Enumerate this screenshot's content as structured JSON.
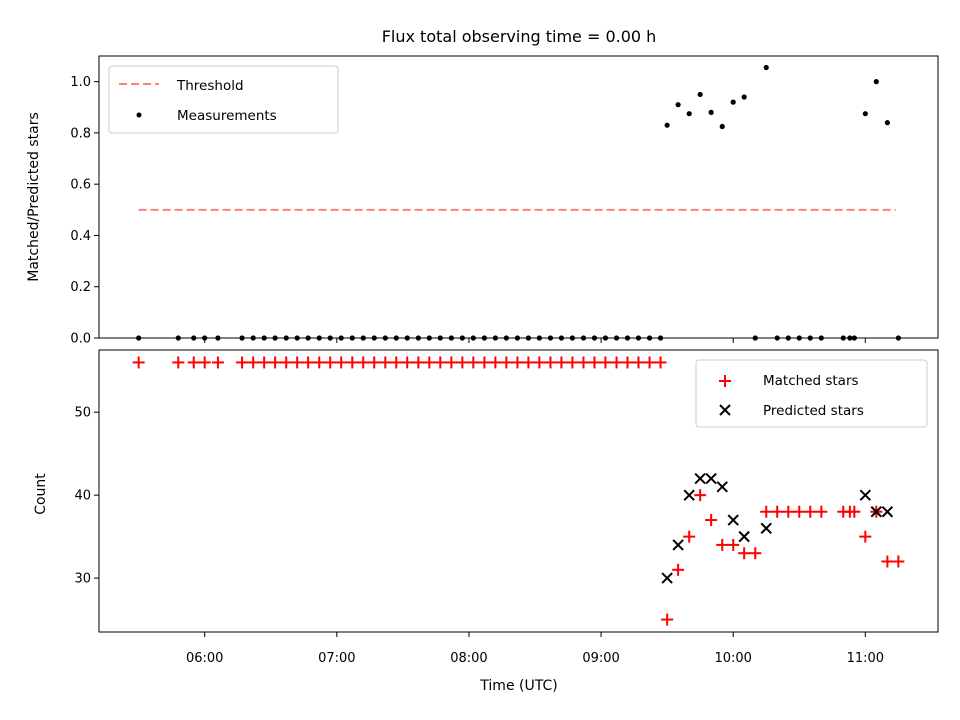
{
  "chart_data": [
    {
      "type": "scatter",
      "title": "Flux total observing time = 0.00 h",
      "xlabel": "",
      "ylabel": "Matched/Predicted stars",
      "x_unit": "hours (UTC)",
      "xlim": [
        5.2,
        11.55
      ],
      "ylim": [
        0,
        1.1
      ],
      "y_ticks": [
        "0.0",
        "0.2",
        "0.4",
        "0.6",
        "0.8",
        "1.0"
      ],
      "legend": {
        "placement": "top-left",
        "entries": [
          "Threshold",
          "Measurements"
        ]
      },
      "threshold": {
        "name": "Threshold",
        "value": 0.5,
        "x_range": [
          5.5,
          11.23
        ],
        "color": "#ff7f7f",
        "style": "dashed"
      },
      "series": [
        {
          "name": "Measurements",
          "color": "#000000",
          "marker": "dot",
          "points": [
            [
              5.5,
              0
            ],
            [
              5.8,
              0
            ],
            [
              5.917,
              0
            ],
            [
              6.0,
              0
            ],
            [
              6.1,
              0
            ],
            [
              6.283,
              0
            ],
            [
              6.367,
              0
            ],
            [
              6.45,
              0
            ],
            [
              6.533,
              0
            ],
            [
              6.617,
              0
            ],
            [
              6.7,
              0
            ],
            [
              6.783,
              0
            ],
            [
              6.867,
              0
            ],
            [
              6.95,
              0
            ],
            [
              7.033,
              0
            ],
            [
              7.117,
              0
            ],
            [
              7.2,
              0
            ],
            [
              7.283,
              0
            ],
            [
              7.367,
              0
            ],
            [
              7.45,
              0
            ],
            [
              7.533,
              0
            ],
            [
              7.617,
              0
            ],
            [
              7.7,
              0
            ],
            [
              7.783,
              0
            ],
            [
              7.867,
              0
            ],
            [
              7.95,
              0
            ],
            [
              8.033,
              0
            ],
            [
              8.117,
              0
            ],
            [
              8.2,
              0
            ],
            [
              8.283,
              0
            ],
            [
              8.367,
              0
            ],
            [
              8.45,
              0
            ],
            [
              8.533,
              0
            ],
            [
              8.617,
              0
            ],
            [
              8.7,
              0
            ],
            [
              8.783,
              0
            ],
            [
              8.867,
              0
            ],
            [
              8.95,
              0
            ],
            [
              9.033,
              0
            ],
            [
              9.117,
              0
            ],
            [
              9.2,
              0
            ],
            [
              9.283,
              0
            ],
            [
              9.367,
              0
            ],
            [
              9.45,
              0
            ],
            [
              9.5,
              0.83
            ],
            [
              9.583,
              0.91
            ],
            [
              9.667,
              0.875
            ],
            [
              9.75,
              0.95
            ],
            [
              9.833,
              0.88
            ],
            [
              9.917,
              0.825
            ],
            [
              10.0,
              0.92
            ],
            [
              10.083,
              0.94
            ],
            [
              10.167,
              0
            ],
            [
              10.25,
              1.055
            ],
            [
              10.333,
              0
            ],
            [
              10.417,
              0
            ],
            [
              10.5,
              0
            ],
            [
              10.583,
              0
            ],
            [
              10.667,
              0
            ],
            [
              10.833,
              0
            ],
            [
              10.883,
              0
            ],
            [
              10.917,
              0
            ],
            [
              11.0,
              0.875
            ],
            [
              11.083,
              1.0
            ],
            [
              11.167,
              0.84
            ],
            [
              11.25,
              0
            ]
          ]
        }
      ]
    },
    {
      "type": "scatter",
      "title": "",
      "xlabel": "Time (UTC)",
      "ylabel": "Count",
      "x_unit": "hours (UTC)",
      "xlim": [
        5.2,
        11.55
      ],
      "ylim": [
        23.5,
        57.5
      ],
      "y_ticks": [
        "30",
        "40",
        "50"
      ],
      "x_ticks": [
        "06:00",
        "07:00",
        "08:00",
        "09:00",
        "10:00",
        "11:00"
      ],
      "legend": {
        "placement": "top-right",
        "entries": [
          "Matched stars",
          "Predicted stars"
        ]
      },
      "series": [
        {
          "name": "Matched stars",
          "color": "#ff0000",
          "marker": "plus",
          "points": [
            [
              5.5,
              56
            ],
            [
              5.8,
              56
            ],
            [
              5.917,
              56
            ],
            [
              6.0,
              56
            ],
            [
              6.1,
              56
            ],
            [
              6.283,
              56
            ],
            [
              6.367,
              56
            ],
            [
              6.45,
              56
            ],
            [
              6.533,
              56
            ],
            [
              6.617,
              56
            ],
            [
              6.7,
              56
            ],
            [
              6.783,
              56
            ],
            [
              6.867,
              56
            ],
            [
              6.95,
              56
            ],
            [
              7.033,
              56
            ],
            [
              7.117,
              56
            ],
            [
              7.2,
              56
            ],
            [
              7.283,
              56
            ],
            [
              7.367,
              56
            ],
            [
              7.45,
              56
            ],
            [
              7.533,
              56
            ],
            [
              7.617,
              56
            ],
            [
              7.7,
              56
            ],
            [
              7.783,
              56
            ],
            [
              7.867,
              56
            ],
            [
              7.95,
              56
            ],
            [
              8.033,
              56
            ],
            [
              8.117,
              56
            ],
            [
              8.2,
              56
            ],
            [
              8.283,
              56
            ],
            [
              8.367,
              56
            ],
            [
              8.45,
              56
            ],
            [
              8.533,
              56
            ],
            [
              8.617,
              56
            ],
            [
              8.7,
              56
            ],
            [
              8.783,
              56
            ],
            [
              8.867,
              56
            ],
            [
              8.95,
              56
            ],
            [
              9.033,
              56
            ],
            [
              9.117,
              56
            ],
            [
              9.2,
              56
            ],
            [
              9.283,
              56
            ],
            [
              9.367,
              56
            ],
            [
              9.45,
              56
            ],
            [
              9.5,
              25
            ],
            [
              9.583,
              31
            ],
            [
              9.667,
              35
            ],
            [
              9.75,
              40
            ],
            [
              9.833,
              37
            ],
            [
              9.917,
              34
            ],
            [
              10.0,
              34
            ],
            [
              10.083,
              33
            ],
            [
              10.167,
              33
            ],
            [
              10.25,
              38
            ],
            [
              10.333,
              38
            ],
            [
              10.417,
              38
            ],
            [
              10.5,
              38
            ],
            [
              10.583,
              38
            ],
            [
              10.667,
              38
            ],
            [
              10.833,
              38
            ],
            [
              10.883,
              38
            ],
            [
              10.917,
              38
            ],
            [
              11.0,
              35
            ],
            [
              11.083,
              38
            ],
            [
              11.167,
              32
            ],
            [
              11.25,
              32
            ]
          ]
        },
        {
          "name": "Predicted stars",
          "color": "#000000",
          "marker": "x",
          "points": [
            [
              9.5,
              30
            ],
            [
              9.583,
              34
            ],
            [
              9.667,
              40
            ],
            [
              9.75,
              42
            ],
            [
              9.833,
              42
            ],
            [
              9.917,
              41
            ],
            [
              10.0,
              37
            ],
            [
              10.083,
              35
            ],
            [
              10.25,
              36
            ],
            [
              11.0,
              40
            ],
            [
              11.083,
              38
            ],
            [
              11.167,
              38
            ]
          ]
        }
      ]
    }
  ]
}
